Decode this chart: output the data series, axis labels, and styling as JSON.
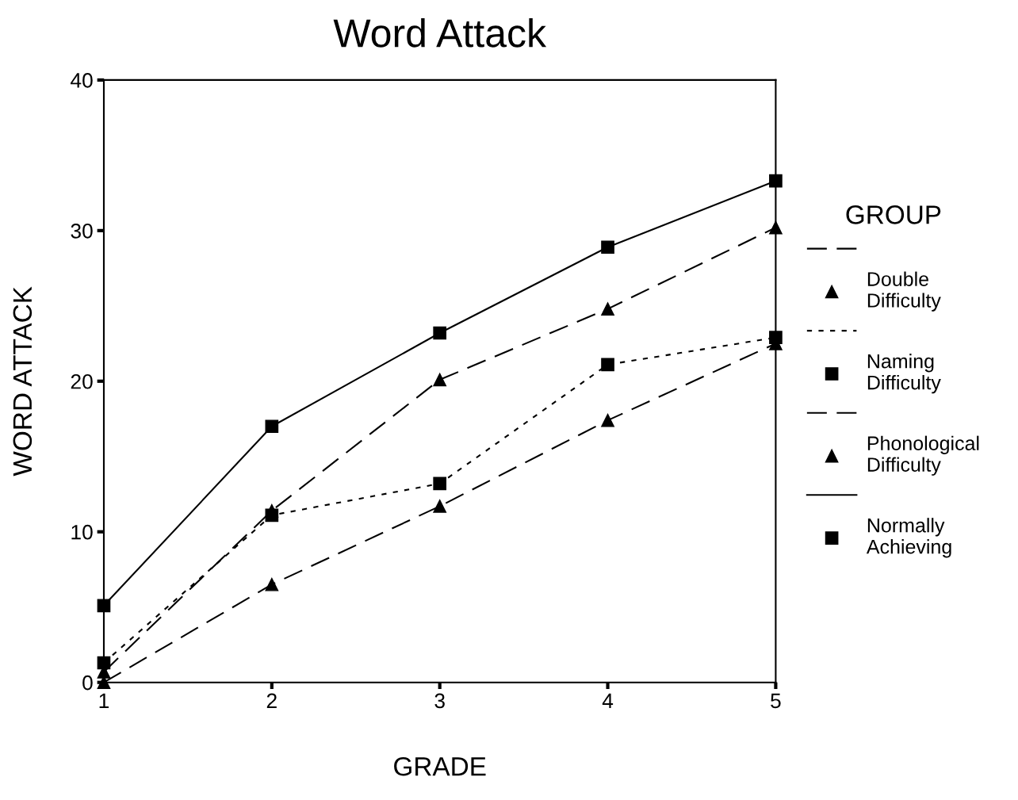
{
  "chart_data": {
    "type": "line",
    "title": "Word Attack",
    "xlabel": "GRADE",
    "ylabel": "WORD ATTACK",
    "legend_title": "GROUP",
    "x": [
      1,
      2,
      3,
      4,
      5
    ],
    "xlim": [
      1,
      5
    ],
    "xticks": [
      1,
      2,
      3,
      4,
      5
    ],
    "ylim": [
      0,
      40
    ],
    "yticks": [
      0,
      10,
      20,
      30,
      40
    ],
    "grid": false,
    "legend": "right",
    "series": [
      {
        "name": "Double Difficulty",
        "color": "#000000",
        "marker": "triangle",
        "line_style": "dashed",
        "values": [
          0,
          6.5,
          11.7,
          17.4,
          22.5
        ]
      },
      {
        "name": "Naming Difficulty",
        "color": "#000000",
        "marker": "square",
        "line_style": "dotted",
        "values": [
          1.3,
          11.1,
          13.2,
          21.1,
          22.9
        ]
      },
      {
        "name": "Phonological Difficulty",
        "color": "#000000",
        "marker": "triangle",
        "line_style": "dashed",
        "values": [
          0.7,
          11.4,
          20.1,
          24.8,
          30.2
        ]
      },
      {
        "name": "Normally Achieving",
        "color": "#000000",
        "marker": "square",
        "line_style": "solid",
        "values": [
          5.1,
          17.0,
          23.2,
          28.9,
          33.3
        ]
      }
    ]
  }
}
